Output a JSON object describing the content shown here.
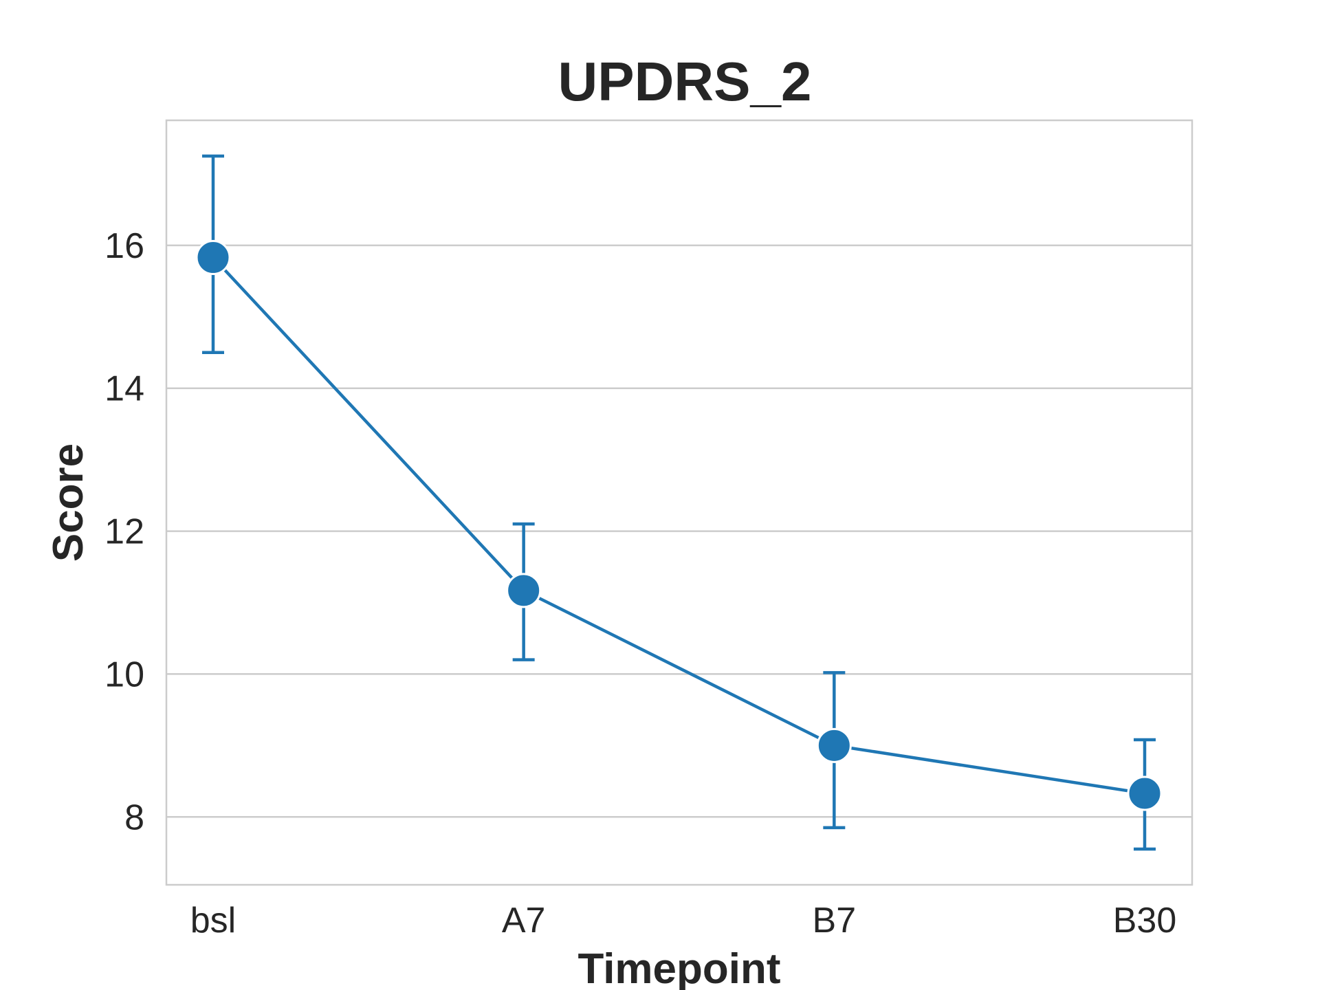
{
  "chart_data": {
    "type": "line",
    "title": "UPDRS_2",
    "xlabel": "Timepoint",
    "ylabel": "Score",
    "categories": [
      "bsl",
      "A7",
      "B7",
      "B30"
    ],
    "series": [
      {
        "values": [
          15.83,
          11.17,
          9.0,
          8.33
        ],
        "error_low": [
          14.5,
          10.2,
          7.85,
          7.55
        ],
        "error_high": [
          17.25,
          12.1,
          10.02,
          9.08
        ],
        "color": "#1f77b4"
      }
    ],
    "ylim": [
      7.05,
      17.75
    ],
    "yticks": [
      "8",
      "10",
      "12",
      "14",
      "16"
    ],
    "grid": true,
    "grid_axis": "y",
    "legend": "none"
  }
}
